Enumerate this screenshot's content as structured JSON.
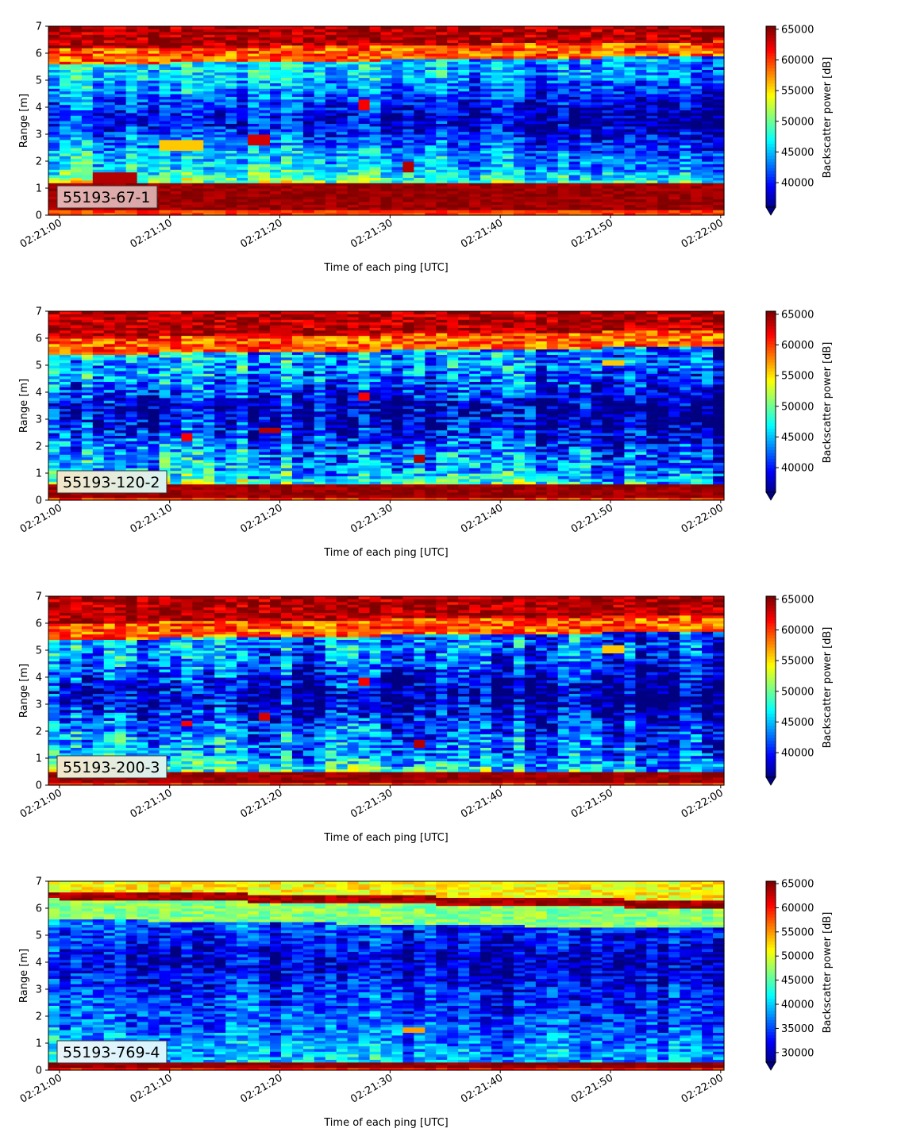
{
  "chart_data": [
    {
      "type": "heatmap",
      "label": "55193-67-1",
      "xlabel": "Time of each ping [UTC]",
      "ylabel": "Range [m]",
      "x_ticks": [
        "02:21:00",
        "02:21:10",
        "02:21:20",
        "02:21:30",
        "02:21:40",
        "02:21:50",
        "02:22:00"
      ],
      "y_ticks": [
        "0",
        "1",
        "2",
        "3",
        "4",
        "5",
        "6",
        "7"
      ],
      "ylim": [
        0,
        7
      ],
      "xlim_seconds": [
        -1,
        60.3
      ],
      "colorbar_label": "Backscatter power [dB]",
      "colorbar_ticks": [
        "40000",
        "45000",
        "50000",
        "55000",
        "60000",
        "65000"
      ],
      "colorbar_range": [
        36000,
        65500
      ],
      "colormap": "jet",
      "pattern": {
        "surface_band": {
          "from": 0.25,
          "to": 1.15,
          "level": 66000
        },
        "top_band_start": 5.6,
        "top_band_end": 6.15,
        "mid_level": 48000,
        "mid_dip_center": 3.6,
        "mid_dip_depth": 7000,
        "drift": -4500,
        "noise": 5000,
        "hot_spots": [
          {
            "t": 4,
            "r0": 1.2,
            "r1": 1.55,
            "v": 64000
          },
          {
            "t": 6,
            "r0": 1.2,
            "r1": 1.55,
            "v": 64000
          },
          {
            "t": 18,
            "r0": 2.6,
            "r1": 3.0,
            "v": 63000
          },
          {
            "t": 27.5,
            "r0": 3.9,
            "r1": 4.3,
            "v": 62000
          },
          {
            "t": 31.5,
            "r0": 1.6,
            "r1": 2.0,
            "v": 64000
          },
          {
            "t": 10,
            "r0": 2.45,
            "r1": 2.75,
            "v": 56000
          },
          {
            "t": 12,
            "r0": 2.45,
            "r1": 2.75,
            "v": 56000
          }
        ]
      }
    },
    {
      "type": "heatmap",
      "label": "55193-120-2",
      "xlabel": "Time of each ping [UTC]",
      "ylabel": "Range [m]",
      "x_ticks": [
        "02:21:00",
        "02:21:10",
        "02:21:20",
        "02:21:30",
        "02:21:40",
        "02:21:50",
        "02:22:00"
      ],
      "y_ticks": [
        "0",
        "1",
        "2",
        "3",
        "4",
        "5",
        "6",
        "7"
      ],
      "ylim": [
        0,
        7
      ],
      "xlim_seconds": [
        -1,
        60.3
      ],
      "colorbar_label": "Backscatter power [dB]",
      "colorbar_ticks": [
        "40000",
        "45000",
        "50000",
        "55000",
        "60000",
        "65000"
      ],
      "colorbar_range": [
        36000,
        65500
      ],
      "colormap": "jet",
      "pattern": {
        "surface_band": {
          "from": 0.1,
          "to": 0.55,
          "level": 66000
        },
        "top_band_start": 5.4,
        "top_band_end": 6.0,
        "mid_level": 46500,
        "mid_dip_center": 3.2,
        "mid_dip_depth": 6500,
        "drift": -4500,
        "noise": 6500,
        "hot_spots": [
          {
            "t": 11.5,
            "r0": 2.25,
            "r1": 2.45,
            "v": 62000
          },
          {
            "t": 19,
            "r0": 2.5,
            "r1": 2.7,
            "v": 64000
          },
          {
            "t": 27.5,
            "r0": 3.75,
            "r1": 3.95,
            "v": 62000
          },
          {
            "t": 32.5,
            "r0": 1.45,
            "r1": 1.65,
            "v": 64000
          },
          {
            "t": 50,
            "r0": 5.0,
            "r1": 5.2,
            "v": 56000
          }
        ]
      }
    },
    {
      "type": "heatmap",
      "label": "55193-200-3",
      "xlabel": "Time of each ping [UTC]",
      "ylabel": "Range [m]",
      "x_ticks": [
        "02:21:00",
        "02:21:10",
        "02:21:20",
        "02:21:30",
        "02:21:40",
        "02:21:50",
        "02:22:00"
      ],
      "y_ticks": [
        "0",
        "1",
        "2",
        "3",
        "4",
        "5",
        "6",
        "7"
      ],
      "ylim": [
        0,
        7
      ],
      "xlim_seconds": [
        -1,
        60.3
      ],
      "colorbar_label": "Backscatter power [dB]",
      "colorbar_ticks": [
        "40000",
        "45000",
        "50000",
        "55000",
        "60000",
        "65000"
      ],
      "colorbar_range": [
        36000,
        65500
      ],
      "colormap": "jet",
      "pattern": {
        "surface_band": {
          "from": 0.15,
          "to": 0.45,
          "level": 66000
        },
        "top_band_start": 5.4,
        "top_band_end": 6.0,
        "mid_level": 45500,
        "mid_dip_center": 3.3,
        "mid_dip_depth": 6000,
        "drift": -4000,
        "noise": 6500,
        "hot_spots": [
          {
            "t": 11.5,
            "r0": 2.2,
            "r1": 2.4,
            "v": 62000
          },
          {
            "t": 18.5,
            "r0": 2.45,
            "r1": 2.65,
            "v": 63000
          },
          {
            "t": 27.5,
            "r0": 3.75,
            "r1": 3.95,
            "v": 62000
          },
          {
            "t": 32.5,
            "r0": 1.45,
            "r1": 1.65,
            "v": 64000
          },
          {
            "t": 50,
            "r0": 4.95,
            "r1": 5.15,
            "v": 56000
          }
        ]
      }
    },
    {
      "type": "heatmap",
      "label": "55193-769-4",
      "xlabel": "Time of each ping [UTC]",
      "ylabel": "Range [m]",
      "x_ticks": [
        "02:21:00",
        "02:21:10",
        "02:21:20",
        "02:21:30",
        "02:21:40",
        "02:21:50",
        "02:22:00"
      ],
      "y_ticks": [
        "0",
        "1",
        "2",
        "3",
        "4",
        "5",
        "6",
        "7"
      ],
      "ylim": [
        0,
        7
      ],
      "xlim_seconds": [
        -1,
        60.3
      ],
      "colorbar_label": "Backscatter power [dB]",
      "colorbar_ticks": [
        "30000",
        "35000",
        "40000",
        "45000",
        "50000",
        "55000",
        "60000",
        "65000"
      ],
      "colorbar_range": [
        28000,
        65500
      ],
      "colormap": "jet",
      "pattern": {
        "surface_band": {
          "from": 0.1,
          "to": 0.3,
          "level": 66000
        },
        "top_band_start": 6.35,
        "top_band_end": 6.65,
        "top_band_only": true,
        "mid_level": 37000,
        "mid_dip_center": 4.0,
        "mid_dip_depth": 4500,
        "drift": -3000,
        "noise": 6000,
        "hot_spots": [
          {
            "t": 32,
            "r0": 1.45,
            "r1": 1.6,
            "v": 55000
          }
        ]
      }
    }
  ]
}
